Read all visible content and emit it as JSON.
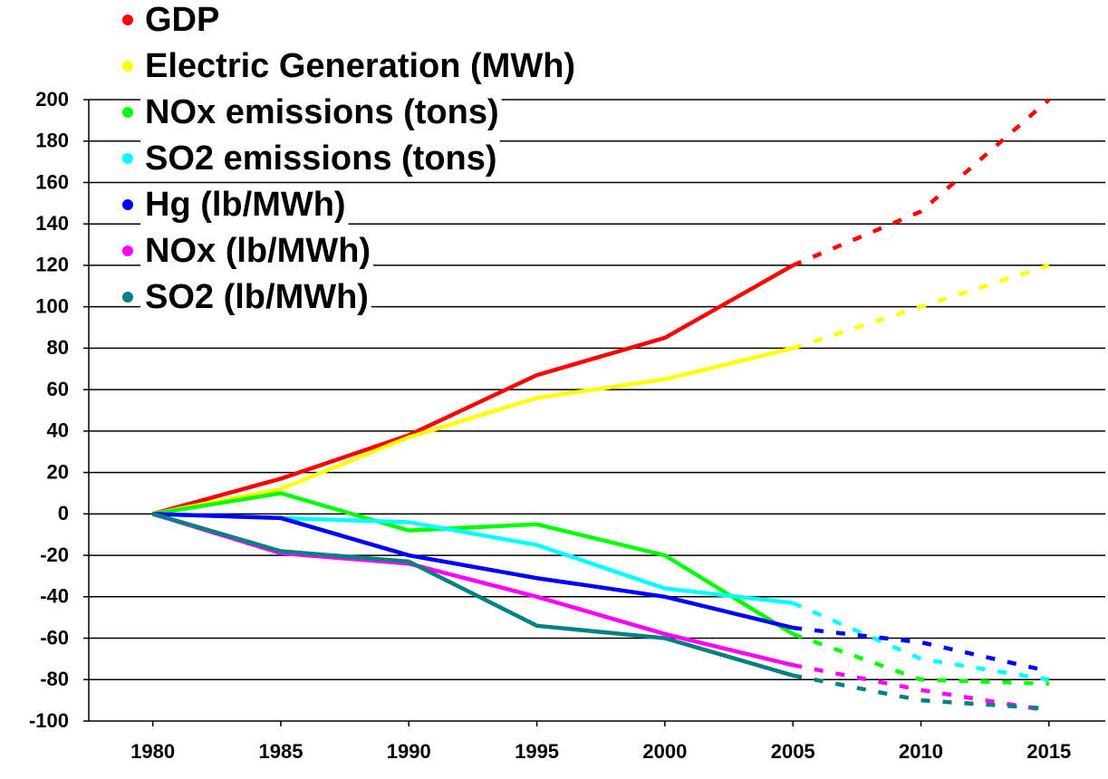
{
  "chart_data": {
    "type": "line",
    "x": [
      1980,
      1985,
      1990,
      1995,
      2000,
      2005,
      2010,
      2015
    ],
    "projection_start": 2005,
    "series": [
      {
        "name": "GDP",
        "color": "#ff0000",
        "values": [
          0,
          17,
          38,
          67,
          85,
          120,
          146,
          200
        ]
      },
      {
        "name": "Electric Generation (MWh)",
        "color": "#ffff00",
        "values": [
          0,
          12,
          37,
          56,
          65,
          80,
          100,
          120
        ]
      },
      {
        "name": "NOx emissions (tons)",
        "color": "#00ff00",
        "values": [
          0,
          10,
          -8,
          -5,
          -20,
          -58,
          -80,
          -82
        ]
      },
      {
        "name": "SO2 emissions (tons)",
        "color": "#00ffff",
        "values": [
          0,
          -2,
          -4,
          -15,
          -36,
          -43,
          -70,
          -80
        ]
      },
      {
        "name": "Hg (lb/MWh)",
        "color": "#0000ff",
        "values": [
          0,
          -2,
          -20,
          -31,
          -40,
          -55,
          -62,
          -76
        ]
      },
      {
        "name": "NOx (lb/MWh)",
        "color": "#ff00ff",
        "values": [
          0,
          -19,
          -24,
          -40,
          -58,
          -73,
          -85,
          -95
        ]
      },
      {
        "name": "SO2 (lb/MWh)",
        "color": "#008080",
        "values": [
          0,
          -18,
          -23,
          -54,
          -60,
          -78,
          -90,
          -94
        ]
      }
    ],
    "xlim": [
      1977.5,
      2017.2
    ],
    "xticks": [
      1980,
      1985,
      1990,
      1995,
      2000,
      2005,
      2010,
      2015
    ],
    "ylim": [
      -100,
      200
    ],
    "yticks": [
      -100,
      -80,
      -60,
      -40,
      -20,
      0,
      20,
      40,
      60,
      80,
      100,
      120,
      140,
      160,
      180,
      200
    ],
    "grid": true,
    "legend": "top-left"
  }
}
